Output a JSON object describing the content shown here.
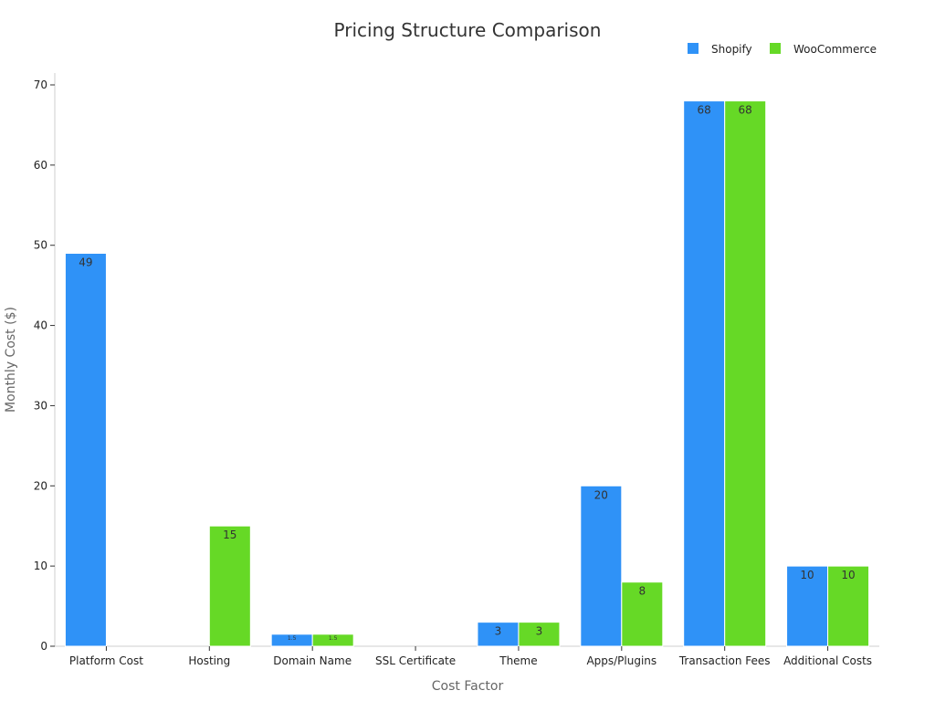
{
  "chart_data": {
    "type": "bar",
    "title": "Pricing Structure Comparison",
    "xlabel": "Cost Factor",
    "ylabel": "Monthly Cost ($)",
    "ylim": [
      0,
      70
    ],
    "yticks": [
      0,
      10,
      20,
      30,
      40,
      50,
      60,
      70
    ],
    "grid": false,
    "legend_position": "top-right",
    "categories": [
      "Platform Cost",
      "Hosting",
      "Domain Name",
      "SSL Certificate",
      "Theme",
      "Apps/Plugins",
      "Transaction Fees",
      "Additional Costs"
    ],
    "series": [
      {
        "name": "Shopify",
        "color": "#2f92f7",
        "values": [
          49,
          0,
          1.5,
          0,
          3,
          20,
          68,
          10
        ],
        "labels": [
          "49",
          "",
          "1.5",
          "",
          "3",
          "20",
          "68",
          "10"
        ]
      },
      {
        "name": "WooCommerce",
        "color": "#66d926",
        "values": [
          0,
          15,
          1.5,
          0,
          3,
          8,
          68,
          10
        ],
        "labels": [
          "",
          "15",
          "1.5",
          "",
          "3",
          "8",
          "68",
          "10"
        ]
      }
    ]
  }
}
